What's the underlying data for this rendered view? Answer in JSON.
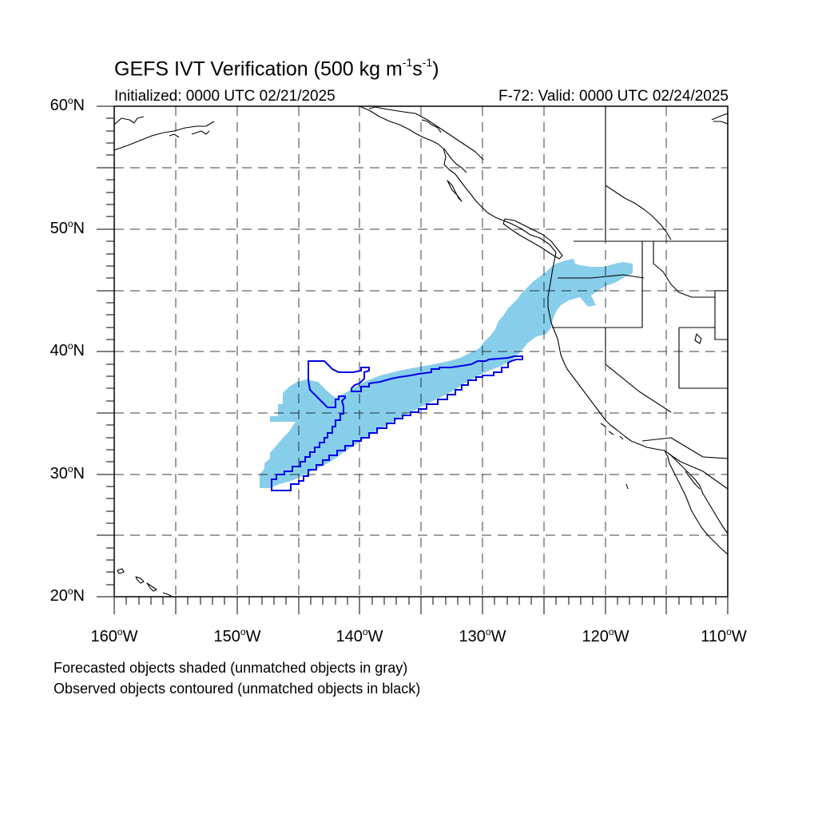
{
  "title": {
    "text": "GEFS IVT Verification (500 kg m",
    "exp1": "-1",
    "mid": "s",
    "exp2": "-1",
    "end": ")"
  },
  "initialized": "Initialized: 0000 UTC 02/21/2025",
  "valid": "F-72: Valid: 0000 UTC 02/24/2025",
  "lat_labels": [
    {
      "text": "60",
      "hemi": "N",
      "lat": 60
    },
    {
      "text": "50",
      "hemi": "N",
      "lat": 50
    },
    {
      "text": "40",
      "hemi": "N",
      "lat": 40
    },
    {
      "text": "30",
      "hemi": "N",
      "lat": 30
    },
    {
      "text": "20",
      "hemi": "N",
      "lat": 20
    }
  ],
  "lon_labels": [
    {
      "text": "160",
      "hemi": "W",
      "lon": -160
    },
    {
      "text": "150",
      "hemi": "W",
      "lon": -150
    },
    {
      "text": "140",
      "hemi": "W",
      "lon": -140
    },
    {
      "text": "130",
      "hemi": "W",
      "lon": -130
    },
    {
      "text": "120",
      "hemi": "W",
      "lon": -120
    },
    {
      "text": "110",
      "hemi": "W",
      "lon": -110
    }
  ],
  "degree_symbol": "o",
  "notes": [
    "Forecasted objects shaded (unmatched objects in gray)",
    "Observed objects contoured (unmatched objects in black)"
  ],
  "colors": {
    "forecast_fill": "#87ceeb",
    "observed_contour": "#0000e6",
    "coastline": "#000000",
    "grid": "#000000"
  },
  "map_extent": {
    "lon_min": -160,
    "lon_max": -110,
    "lat_min": 20,
    "lat_max": 60
  }
}
